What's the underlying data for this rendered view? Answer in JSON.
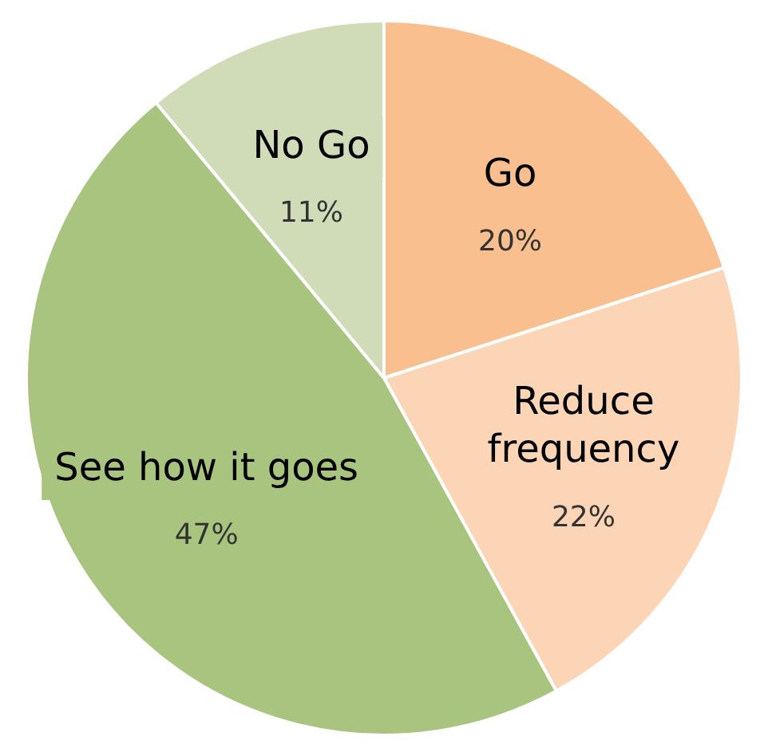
{
  "chart_data": {
    "type": "pie",
    "categories": [
      "Go",
      "Reduce frequency",
      "See how it goes",
      "No Go"
    ],
    "values": [
      20,
      22,
      47,
      11
    ],
    "colors": [
      "#f9bf8f",
      "#fbd5b5",
      "#a9c47f",
      "#d0dcb8"
    ],
    "value_labels": [
      "20%",
      "22%",
      "47%",
      "11%"
    ],
    "legend": false
  }
}
